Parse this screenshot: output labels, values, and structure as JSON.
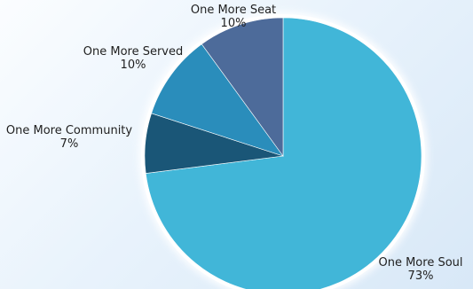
{
  "chart_data": {
    "type": "pie",
    "title": "",
    "start_angle_deg": 0,
    "direction": "clockwise",
    "series": [
      {
        "name": "One More Soul",
        "value": 73,
        "percent_label": "73%",
        "color": "#41b6d8"
      },
      {
        "name": "One More Community",
        "value": 7,
        "percent_label": "7%",
        "color": "#1a5677"
      },
      {
        "name": "One More Served",
        "value": 10,
        "percent_label": "10%",
        "color": "#2a8dbb"
      },
      {
        "name": "One More Seat",
        "value": 10,
        "percent_label": "10%",
        "color": "#4d6b9a"
      }
    ]
  }
}
